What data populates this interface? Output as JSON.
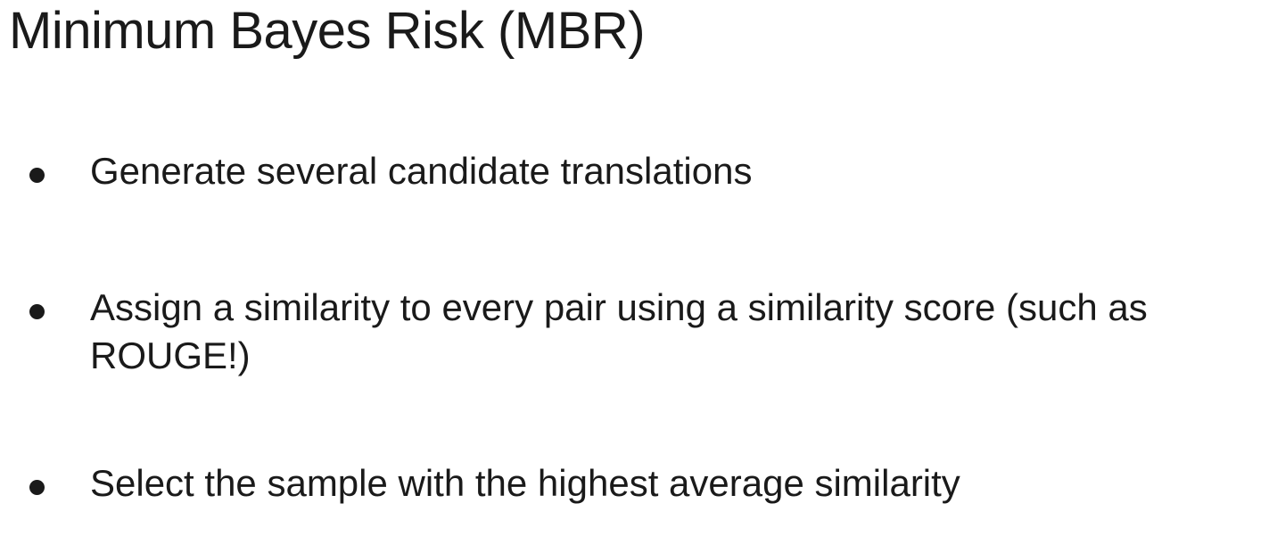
{
  "slide": {
    "title": "Minimum Bayes Risk (MBR)",
    "bullets": [
      "Generate several candidate translations",
      "Assign a similarity to every pair using a similarity score (such as ROUGE!)",
      "Select the sample with the highest average similarity"
    ]
  },
  "colors": {
    "background": "#ffffff",
    "text": "#1a1a1a"
  }
}
